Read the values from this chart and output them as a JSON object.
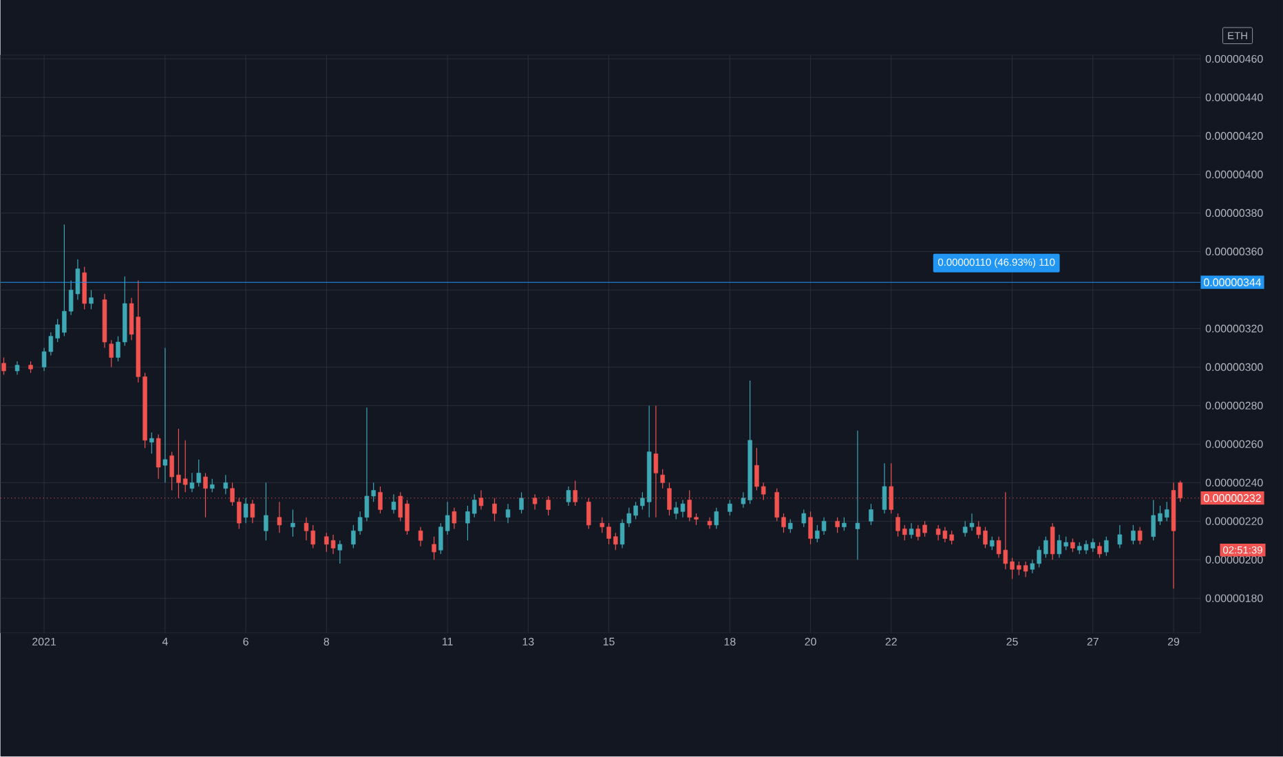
{
  "chart_data": {
    "type": "candlestick",
    "x": [
      "2020-12-31T00:00",
      "2020-12-31T08:00",
      "2020-12-31T16:00",
      "2021-01-01T00:00",
      "2021-01-01T04:00",
      "2021-01-01T08:00",
      "2021-01-01T12:00",
      "2021-01-01T16:00",
      "2021-01-01T20:00",
      "2021-01-02T00:00",
      "2021-01-02T04:00",
      "2021-01-02T12:00",
      "2021-01-02T16:00",
      "2021-01-02T20:00",
      "2021-01-03T00:00",
      "2021-01-03T04:00",
      "2021-01-03T08:00",
      "2021-01-03T12:00",
      "2021-01-03T16:00",
      "2021-01-03T20:00",
      "2021-01-04T00:00",
      "2021-01-04T04:00",
      "2021-01-04T08:00",
      "2021-01-04T12:00",
      "2021-01-04T16:00",
      "2021-01-04T20:00",
      "2021-01-05T00:00",
      "2021-01-05T04:00",
      "2021-01-05T12:00",
      "2021-01-05T16:00",
      "2021-01-05T20:00",
      "2021-01-06T00:00",
      "2021-01-06T04:00",
      "2021-01-06T12:00",
      "2021-01-06T20:00",
      "2021-01-07T04:00",
      "2021-01-07T12:00",
      "2021-01-07T16:00",
      "2021-01-08T00:00",
      "2021-01-08T04:00",
      "2021-01-08T08:00",
      "2021-01-08T16:00",
      "2021-01-08T20:00",
      "2021-01-09T00:00",
      "2021-01-09T04:00",
      "2021-01-09T08:00",
      "2021-01-09T16:00",
      "2021-01-09T20:00",
      "2021-01-10T00:00",
      "2021-01-10T08:00",
      "2021-01-10T16:00",
      "2021-01-10T20:00",
      "2021-01-11T00:00",
      "2021-01-11T04:00",
      "2021-01-11T12:00",
      "2021-01-11T16:00",
      "2021-01-11T20:00",
      "2021-01-12T04:00",
      "2021-01-12T12:00",
      "2021-01-12T20:00",
      "2021-01-13T04:00",
      "2021-01-13T12:00",
      "2021-01-14T00:00",
      "2021-01-14T04:00",
      "2021-01-14T12:00",
      "2021-01-14T20:00",
      "2021-01-15T00:00",
      "2021-01-15T04:00",
      "2021-01-15T08:00",
      "2021-01-15T12:00",
      "2021-01-15T16:00",
      "2021-01-15T20:00",
      "2021-01-16T00:00",
      "2021-01-16T04:00",
      "2021-01-16T08:00",
      "2021-01-16T12:00",
      "2021-01-16T16:00",
      "2021-01-16T20:00",
      "2021-01-17T00:00",
      "2021-01-17T04:00",
      "2021-01-17T12:00",
      "2021-01-17T16:00",
      "2021-01-18T00:00",
      "2021-01-18T08:00",
      "2021-01-18T12:00",
      "2021-01-18T16:00",
      "2021-01-18T20:00",
      "2021-01-19T04:00",
      "2021-01-19T08:00",
      "2021-01-19T12:00",
      "2021-01-19T20:00",
      "2021-01-20T00:00",
      "2021-01-20T04:00",
      "2021-01-20T08:00",
      "2021-01-20T16:00",
      "2021-01-20T20:00",
      "2021-01-21T04:00",
      "2021-01-21T12:00",
      "2021-01-21T20:00",
      "2021-01-22T00:00",
      "2021-01-22T04:00",
      "2021-01-22T08:00",
      "2021-01-22T12:00",
      "2021-01-22T16:00",
      "2021-01-22T20:00",
      "2021-01-23T04:00",
      "2021-01-23T08:00",
      "2021-01-23T12:00",
      "2021-01-23T20:00",
      "2021-01-24T00:00",
      "2021-01-24T04:00",
      "2021-01-24T08:00",
      "2021-01-24T12:00",
      "2021-01-24T16:00",
      "2021-01-24T20:00",
      "2021-01-25T00:00",
      "2021-01-25T04:00",
      "2021-01-25T08:00",
      "2021-01-25T12:00",
      "2021-01-25T16:00",
      "2021-01-25T20:00",
      "2021-01-26T00:00",
      "2021-01-26T04:00",
      "2021-01-26T08:00",
      "2021-01-26T12:00",
      "2021-01-26T16:00",
      "2021-01-26T20:00",
      "2021-01-27T00:00",
      "2021-01-27T04:00",
      "2021-01-27T08:00",
      "2021-01-27T16:00",
      "2021-01-28T00:00",
      "2021-01-28T04:00",
      "2021-01-28T12:00",
      "2021-01-28T16:00",
      "2021-01-28T20:00",
      "2021-01-29T00:00",
      "2021-01-29T04:00"
    ],
    "ohlc": [
      [
        3.02e-06,
        3.05e-06,
        2.96e-06,
        2.98e-06
      ],
      [
        2.98e-06,
        3.03e-06,
        2.96e-06,
        3.01e-06
      ],
      [
        3.01e-06,
        3.03e-06,
        2.97e-06,
        2.99e-06
      ],
      [
        3e-06,
        3.1e-06,
        2.98e-06,
        3.08e-06
      ],
      [
        3.08e-06,
        3.18e-06,
        3.06e-06,
        3.16e-06
      ],
      [
        3.15e-06,
        3.25e-06,
        3.13e-06,
        3.22e-06
      ],
      [
        3.18e-06,
        3.74e-06,
        3.16e-06,
        3.29e-06
      ],
      [
        3.29e-06,
        3.45e-06,
        3.27e-06,
        3.4e-06
      ],
      [
        3.38e-06,
        3.56e-06,
        3.35e-06,
        3.51e-06
      ],
      [
        3.49e-06,
        3.52e-06,
        3.3e-06,
        3.33e-06
      ],
      [
        3.33e-06,
        3.4e-06,
        3.3e-06,
        3.36e-06
      ],
      [
        3.35e-06,
        3.38e-06,
        3.1e-06,
        3.13e-06
      ],
      [
        3.12e-06,
        3.14e-06,
        3e-06,
        3.05e-06
      ],
      [
        3.05e-06,
        3.16e-06,
        3.03e-06,
        3.13e-06
      ],
      [
        3.13e-06,
        3.47e-06,
        3.11e-06,
        3.33e-06
      ],
      [
        3.33e-06,
        3.36e-06,
        3.14e-06,
        3.17e-06
      ],
      [
        3.26e-06,
        3.45e-06,
        2.92e-06,
        2.95e-06
      ],
      [
        2.95e-06,
        2.97e-06,
        2.58e-06,
        2.62e-06
      ],
      [
        2.61e-06,
        2.66e-06,
        2.55e-06,
        2.63e-06
      ],
      [
        2.63e-06,
        2.65e-06,
        2.42e-06,
        2.48e-06
      ],
      [
        2.49e-06,
        3.1e-06,
        2.4e-06,
        2.52e-06
      ],
      [
        2.54e-06,
        2.56e-06,
        2.36e-06,
        2.43e-06
      ],
      [
        2.44e-06,
        2.68e-06,
        2.32e-06,
        2.4e-06
      ],
      [
        2.42e-06,
        2.62e-06,
        2.35e-06,
        2.39e-06
      ],
      [
        2.37e-06,
        2.45e-06,
        2.35e-06,
        2.4e-06
      ],
      [
        2.4e-06,
        2.52e-06,
        2.38e-06,
        2.45e-06
      ],
      [
        2.43e-06,
        2.45e-06,
        2.22e-06,
        2.37e-06
      ],
      [
        2.37e-06,
        2.42e-06,
        2.35e-06,
        2.39e-06
      ],
      [
        2.37e-06,
        2.44e-06,
        2.34e-06,
        2.4e-06
      ],
      [
        2.37e-06,
        2.4e-06,
        2.28e-06,
        2.3e-06
      ],
      [
        2.3e-06,
        2.32e-06,
        2.16e-06,
        2.19e-06
      ],
      [
        2.22e-06,
        2.32e-06,
        2.19e-06,
        2.29e-06
      ],
      [
        2.29e-06,
        2.31e-06,
        2.19e-06,
        2.22e-06
      ],
      [
        2.15e-06,
        2.4e-06,
        2.1e-06,
        2.23e-06
      ],
      [
        2.22e-06,
        2.3e-06,
        2.14e-06,
        2.18e-06
      ],
      [
        2.17e-06,
        2.26e-06,
        2.12e-06,
        2.19e-06
      ],
      [
        2.19e-06,
        2.22e-06,
        2.1e-06,
        2.15e-06
      ],
      [
        2.15e-06,
        2.18e-06,
        2.06e-06,
        2.08e-06
      ],
      [
        2.12e-06,
        2.14e-06,
        2.04e-06,
        2.08e-06
      ],
      [
        2.1e-06,
        2.13e-06,
        2.03e-06,
        2.06e-06
      ],
      [
        2.05e-06,
        2.1e-06,
        1.98e-06,
        2.08e-06
      ],
      [
        2.08e-06,
        2.18e-06,
        2.06e-06,
        2.15e-06
      ],
      [
        2.15e-06,
        2.25e-06,
        2.13e-06,
        2.22e-06
      ],
      [
        2.22e-06,
        2.79e-06,
        2.2e-06,
        2.33e-06
      ],
      [
        2.33e-06,
        2.4e-06,
        2.3e-06,
        2.36e-06
      ],
      [
        2.35e-06,
        2.38e-06,
        2.24e-06,
        2.26e-06
      ],
      [
        2.26e-06,
        2.34e-06,
        2.24e-06,
        2.3e-06
      ],
      [
        2.33e-06,
        2.35e-06,
        2.2e-06,
        2.22e-06
      ],
      [
        2.29e-06,
        2.31e-06,
        2.13e-06,
        2.15e-06
      ],
      [
        2.15e-06,
        2.17e-06,
        2.07e-06,
        2.1e-06
      ],
      [
        2.08e-06,
        2.12e-06,
        2e-06,
        2.04e-06
      ],
      [
        2.05e-06,
        2.19e-06,
        2.03e-06,
        2.17e-06
      ],
      [
        2.15e-06,
        2.3e-06,
        2.13e-06,
        2.23e-06
      ],
      [
        2.25e-06,
        2.27e-06,
        2.16e-06,
        2.19e-06
      ],
      [
        2.19e-06,
        2.28e-06,
        2.1e-06,
        2.25e-06
      ],
      [
        2.24e-06,
        2.34e-06,
        2.22e-06,
        2.31e-06
      ],
      [
        2.32e-06,
        2.36e-06,
        2.26e-06,
        2.28e-06
      ],
      [
        2.29e-06,
        2.32e-06,
        2.2e-06,
        2.24e-06
      ],
      [
        2.22e-06,
        2.29e-06,
        2.19e-06,
        2.26e-06
      ],
      [
        2.26e-06,
        2.35e-06,
        2.24e-06,
        2.32e-06
      ],
      [
        2.32e-06,
        2.34e-06,
        2.26e-06,
        2.29e-06
      ],
      [
        2.31e-06,
        2.33e-06,
        2.23e-06,
        2.26e-06
      ],
      [
        2.3e-06,
        2.38e-06,
        2.28e-06,
        2.36e-06
      ],
      [
        2.36e-06,
        2.41e-06,
        2.28e-06,
        2.3e-06
      ],
      [
        2.3e-06,
        2.32e-06,
        2.16e-06,
        2.18e-06
      ],
      [
        2.19e-06,
        2.22e-06,
        2.14e-06,
        2.17e-06
      ],
      [
        2.17e-06,
        2.19e-06,
        2.08e-06,
        2.11e-06
      ],
      [
        2.12e-06,
        2.14e-06,
        2.05e-06,
        2.08e-06
      ],
      [
        2.08e-06,
        2.21e-06,
        2.06e-06,
        2.19e-06
      ],
      [
        2.19e-06,
        2.27e-06,
        2.17e-06,
        2.24e-06
      ],
      [
        2.23e-06,
        2.3e-06,
        2.21e-06,
        2.28e-06
      ],
      [
        2.28e-06,
        2.35e-06,
        2.26e-06,
        2.32e-06
      ],
      [
        2.3e-06,
        2.8e-06,
        2.22e-06,
        2.56e-06
      ],
      [
        2.55e-06,
        2.8e-06,
        2.22e-06,
        2.45e-06
      ],
      [
        2.44e-06,
        2.47e-06,
        2.37e-06,
        2.4e-06
      ],
      [
        2.37e-06,
        2.4e-06,
        2.23e-06,
        2.26e-06
      ],
      [
        2.24e-06,
        2.3e-06,
        2.21e-06,
        2.27e-06
      ],
      [
        2.25e-06,
        2.31e-06,
        2.22e-06,
        2.29e-06
      ],
      [
        2.31e-06,
        2.36e-06,
        2.2e-06,
        2.22e-06
      ],
      [
        2.22e-06,
        2.24e-06,
        2.18e-06,
        2.21e-06
      ],
      [
        2.2e-06,
        2.22e-06,
        2.16e-06,
        2.18e-06
      ],
      [
        2.18e-06,
        2.27e-06,
        2.16e-06,
        2.25e-06
      ],
      [
        2.25e-06,
        2.31e-06,
        2.23e-06,
        2.29e-06
      ],
      [
        2.29e-06,
        2.35e-06,
        2.27e-06,
        2.32e-06
      ],
      [
        2.31e-06,
        2.93e-06,
        2.29e-06,
        2.62e-06
      ],
      [
        2.49e-06,
        2.58e-06,
        2.36e-06,
        2.38e-06
      ],
      [
        2.38e-06,
        2.4e-06,
        2.31e-06,
        2.34e-06
      ],
      [
        2.35e-06,
        2.37e-06,
        2.2e-06,
        2.22e-06
      ],
      [
        2.22e-06,
        2.24e-06,
        2.14e-06,
        2.17e-06
      ],
      [
        2.16e-06,
        2.21e-06,
        2.14e-06,
        2.19e-06
      ],
      [
        2.19e-06,
        2.26e-06,
        2.17e-06,
        2.24e-06
      ],
      [
        2.22e-06,
        2.25e-06,
        2.08e-06,
        2.11e-06
      ],
      [
        2.11e-06,
        2.18e-06,
        2.09e-06,
        2.15e-06
      ],
      [
        2.15e-06,
        2.22e-06,
        2.13e-06,
        2.2e-06
      ],
      [
        2.2e-06,
        2.22e-06,
        2.14e-06,
        2.17e-06
      ],
      [
        2.17e-06,
        2.22e-06,
        2.15e-06,
        2.19e-06
      ],
      [
        2.16e-06,
        2.67e-06,
        2e-06,
        2.19e-06
      ],
      [
        2.2e-06,
        2.29e-06,
        2.18e-06,
        2.26e-06
      ],
      [
        2.26e-06,
        2.5e-06,
        2.24e-06,
        2.38e-06
      ],
      [
        2.38e-06,
        2.5e-06,
        2.24e-06,
        2.26e-06
      ],
      [
        2.22e-06,
        2.24e-06,
        2.12e-06,
        2.15e-06
      ],
      [
        2.16e-06,
        2.18e-06,
        2.1e-06,
        2.13e-06
      ],
      [
        2.13e-06,
        2.19e-06,
        2.11e-06,
        2.16e-06
      ],
      [
        2.16e-06,
        2.18e-06,
        2.1e-06,
        2.12e-06
      ],
      [
        2.18e-06,
        2.2e-06,
        2.12e-06,
        2.14e-06
      ],
      [
        2.16e-06,
        2.18e-06,
        2.1e-06,
        2.13e-06
      ],
      [
        2.15e-06,
        2.17e-06,
        2.09e-06,
        2.11e-06
      ],
      [
        2.13e-06,
        2.15e-06,
        2.08e-06,
        2.1e-06
      ],
      [
        2.14e-06,
        2.2e-06,
        2.12e-06,
        2.17e-06
      ],
      [
        2.17e-06,
        2.24e-06,
        2.15e-06,
        2.19e-06
      ],
      [
        2.17e-06,
        2.2e-06,
        2.11e-06,
        2.13e-06
      ],
      [
        2.15e-06,
        2.17e-06,
        2.06e-06,
        2.08e-06
      ],
      [
        2.07e-06,
        2.12e-06,
        2.05e-06,
        2.1e-06
      ],
      [
        2.1e-06,
        2.12e-06,
        2.01e-06,
        2.03e-06
      ],
      [
        2.05e-06,
        2.35e-06,
        1.95e-06,
        1.98e-06
      ],
      [
        1.99e-06,
        2.01e-06,
        1.9e-06,
        1.95e-06
      ],
      [
        1.97e-06,
        1.99e-06,
        1.92e-06,
        1.95e-06
      ],
      [
        1.97e-06,
        1.99e-06,
        1.91e-06,
        1.94e-06
      ],
      [
        1.95e-06,
        2e-06,
        1.93e-06,
        1.98e-06
      ],
      [
        1.98e-06,
        2.07e-06,
        1.96e-06,
        2.05e-06
      ],
      [
        2.03e-06,
        2.12e-06,
        2.01e-06,
        2.1e-06
      ],
      [
        2.17e-06,
        2.19e-06,
        2e-06,
        2.03e-06
      ],
      [
        2.03e-06,
        2.13e-06,
        2.01e-06,
        2.1e-06
      ],
      [
        2.07e-06,
        2.12e-06,
        2.05e-06,
        2.09e-06
      ],
      [
        2.09e-06,
        2.11e-06,
        2.04e-06,
        2.06e-06
      ],
      [
        2.05e-06,
        2.09e-06,
        2.03e-06,
        2.07e-06
      ],
      [
        2.05e-06,
        2.1e-06,
        2.03e-06,
        2.08e-06
      ],
      [
        2.06e-06,
        2.11e-06,
        2.04e-06,
        2.09e-06
      ],
      [
        2.07e-06,
        2.09e-06,
        2.01e-06,
        2.03e-06
      ],
      [
        2.04e-06,
        2.12e-06,
        2.02e-06,
        2.1e-06
      ],
      [
        2.08e-06,
        2.18e-06,
        2.06e-06,
        2.13e-06
      ],
      [
        2.1e-06,
        2.18e-06,
        2.08e-06,
        2.15e-06
      ],
      [
        2.15e-06,
        2.17e-06,
        2.08e-06,
        2.1e-06
      ],
      [
        2.12e-06,
        2.31e-06,
        2.1e-06,
        2.23e-06
      ],
      [
        2.2e-06,
        2.28e-06,
        2.18e-06,
        2.24e-06
      ],
      [
        2.22e-06,
        2.3e-06,
        2.2e-06,
        2.26e-06
      ],
      [
        2.36e-06,
        2.4e-06,
        1.85e-06,
        2.15e-06
      ],
      [
        2.4e-06,
        2.41e-06,
        2.3e-06,
        2.32e-06
      ]
    ],
    "xlim": [
      "2020-12-30T22:00",
      "2021-01-29T16:00"
    ],
    "xticks": [
      {
        "value": "2021-01-01",
        "label": "2021"
      },
      {
        "value": "2021-01-04",
        "label": "4"
      },
      {
        "value": "2021-01-06",
        "label": "6"
      },
      {
        "value": "2021-01-08",
        "label": "8"
      },
      {
        "value": "2021-01-11",
        "label": "11"
      },
      {
        "value": "2021-01-13",
        "label": "13"
      },
      {
        "value": "2021-01-15",
        "label": "15"
      },
      {
        "value": "2021-01-18",
        "label": "18"
      },
      {
        "value": "2021-01-20",
        "label": "20"
      },
      {
        "value": "2021-01-22",
        "label": "22"
      },
      {
        "value": "2021-01-25",
        "label": "25"
      },
      {
        "value": "2021-01-27",
        "label": "27"
      },
      {
        "value": "2021-01-29",
        "label": "29"
      }
    ],
    "ylim": [
      1.62e-06,
      4.62e-06
    ],
    "yticks": [
      {
        "value": 1.8e-06,
        "label": "0.00000180"
      },
      {
        "value": 2e-06,
        "label": "0.00000200"
      },
      {
        "value": 2.2e-06,
        "label": "0.00000220"
      },
      {
        "value": 2.4e-06,
        "label": "0.00000240"
      },
      {
        "value": 2.6e-06,
        "label": "0.00000260"
      },
      {
        "value": 2.8e-06,
        "label": "0.00000280"
      },
      {
        "value": 3e-06,
        "label": "0.00000300"
      },
      {
        "value": 3.2e-06,
        "label": "0.00000320"
      },
      {
        "value": 3.4e-06,
        "label": null
      },
      {
        "value": 3.6e-06,
        "label": "0.00000360"
      },
      {
        "value": 3.8e-06,
        "label": "0.00000380"
      },
      {
        "value": 4e-06,
        "label": "0.00000400"
      },
      {
        "value": 4.2e-06,
        "label": "0.00000420"
      },
      {
        "value": 4.4e-06,
        "label": "0.00000440"
      },
      {
        "value": 4.6e-06,
        "label": "0.00000460"
      }
    ],
    "grid": true,
    "ref_lines": [
      {
        "axis": "y",
        "value": 3.44e-06,
        "label": "0.00000344",
        "color": "#2196f3"
      },
      {
        "axis": "y",
        "value": 2.32e-06,
        "label": "0.00000232",
        "color": "#f05350",
        "line_style": "dotted"
      }
    ],
    "annotations": [
      "ETH",
      "0.00000110 (46.93%) 110",
      "02:51:39"
    ]
  }
}
